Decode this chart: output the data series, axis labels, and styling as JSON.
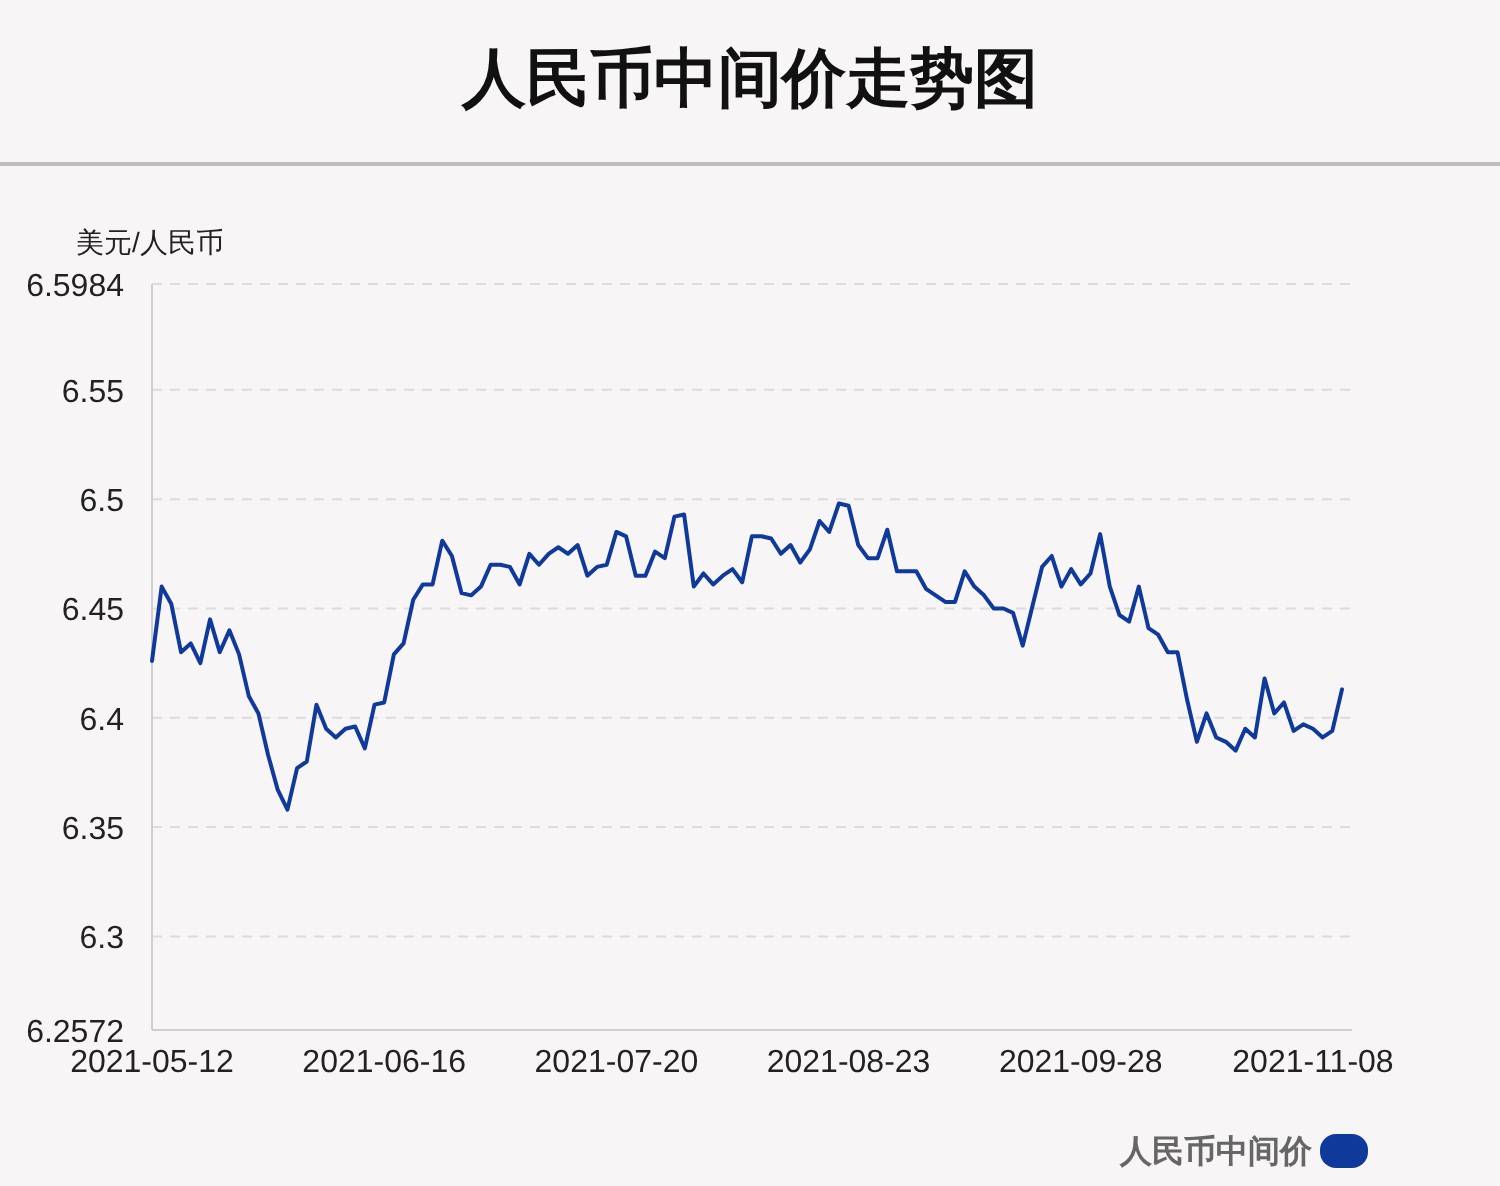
{
  "chart_data": {
    "type": "line",
    "title": "人民币中间价走势图",
    "ylabel": "美元/人民币",
    "categories": [
      "2021-05-12",
      null,
      null,
      null,
      null,
      null,
      null,
      null,
      null,
      null,
      null,
      null,
      null,
      null,
      null,
      null,
      null,
      null,
      null,
      null,
      null,
      null,
      null,
      null,
      "2021-06-16",
      null,
      null,
      null,
      null,
      null,
      null,
      null,
      null,
      null,
      null,
      null,
      null,
      null,
      null,
      null,
      null,
      null,
      null,
      null,
      null,
      null,
      null,
      null,
      "2021-07-20",
      null,
      null,
      null,
      null,
      null,
      null,
      null,
      null,
      null,
      null,
      null,
      null,
      null,
      null,
      null,
      null,
      null,
      null,
      null,
      null,
      null,
      null,
      null,
      "2021-08-23",
      null,
      null,
      null,
      null,
      null,
      null,
      null,
      null,
      null,
      null,
      null,
      null,
      null,
      null,
      null,
      null,
      null,
      null,
      null,
      null,
      null,
      null,
      null,
      "2021-09-28",
      null,
      null,
      null,
      null,
      null,
      null,
      null,
      null,
      null,
      null,
      null,
      null,
      null,
      null,
      null,
      null,
      null,
      null,
      null,
      null,
      null,
      null,
      null,
      "2021-11-08",
      null,
      null,
      null
    ],
    "series": [
      {
        "name": "人民币中间价",
        "color": "#0f3a9c",
        "values": [
          6.426,
          6.46,
          6.452,
          6.43,
          6.434,
          6.425,
          6.445,
          6.43,
          6.44,
          6.429,
          6.41,
          6.402,
          6.383,
          6.367,
          6.358,
          6.377,
          6.38,
          6.406,
          6.395,
          6.391,
          6.395,
          6.396,
          6.386,
          6.406,
          6.407,
          6.429,
          6.434,
          6.454,
          6.461,
          6.461,
          6.481,
          6.474,
          6.457,
          6.456,
          6.46,
          6.47,
          6.47,
          6.469,
          6.461,
          6.475,
          6.47,
          6.475,
          6.478,
          6.475,
          6.479,
          6.465,
          6.469,
          6.47,
          6.485,
          6.483,
          6.465,
          6.465,
          6.476,
          6.473,
          6.492,
          6.493,
          6.46,
          6.466,
          6.461,
          6.465,
          6.468,
          6.462,
          6.483,
          6.483,
          6.482,
          6.475,
          6.479,
          6.471,
          6.477,
          6.49,
          6.485,
          6.498,
          6.497,
          6.479,
          6.473,
          6.473,
          6.486,
          6.467,
          6.467,
          6.467,
          6.459,
          6.456,
          6.453,
          6.453,
          6.467,
          6.46,
          6.456,
          6.45,
          6.45,
          6.448,
          6.433,
          6.451,
          6.469,
          6.474,
          6.46,
          6.468,
          6.461,
          6.466,
          6.484,
          6.46,
          6.447,
          6.444,
          6.46,
          6.441,
          6.438,
          6.43,
          6.43,
          6.408,
          6.389,
          6.402,
          6.391,
          6.389,
          6.385,
          6.395,
          6.391,
          6.418,
          6.402,
          6.407,
          6.394,
          6.397,
          6.395,
          6.391,
          6.394,
          6.413
        ]
      }
    ],
    "ylim": [
      6.2572,
      6.5984
    ],
    "yticks": [
      6.2572,
      6.3,
      6.35,
      6.4,
      6.45,
      6.5,
      6.55,
      6.5984
    ],
    "grid": "y",
    "legend": "bottom right"
  }
}
